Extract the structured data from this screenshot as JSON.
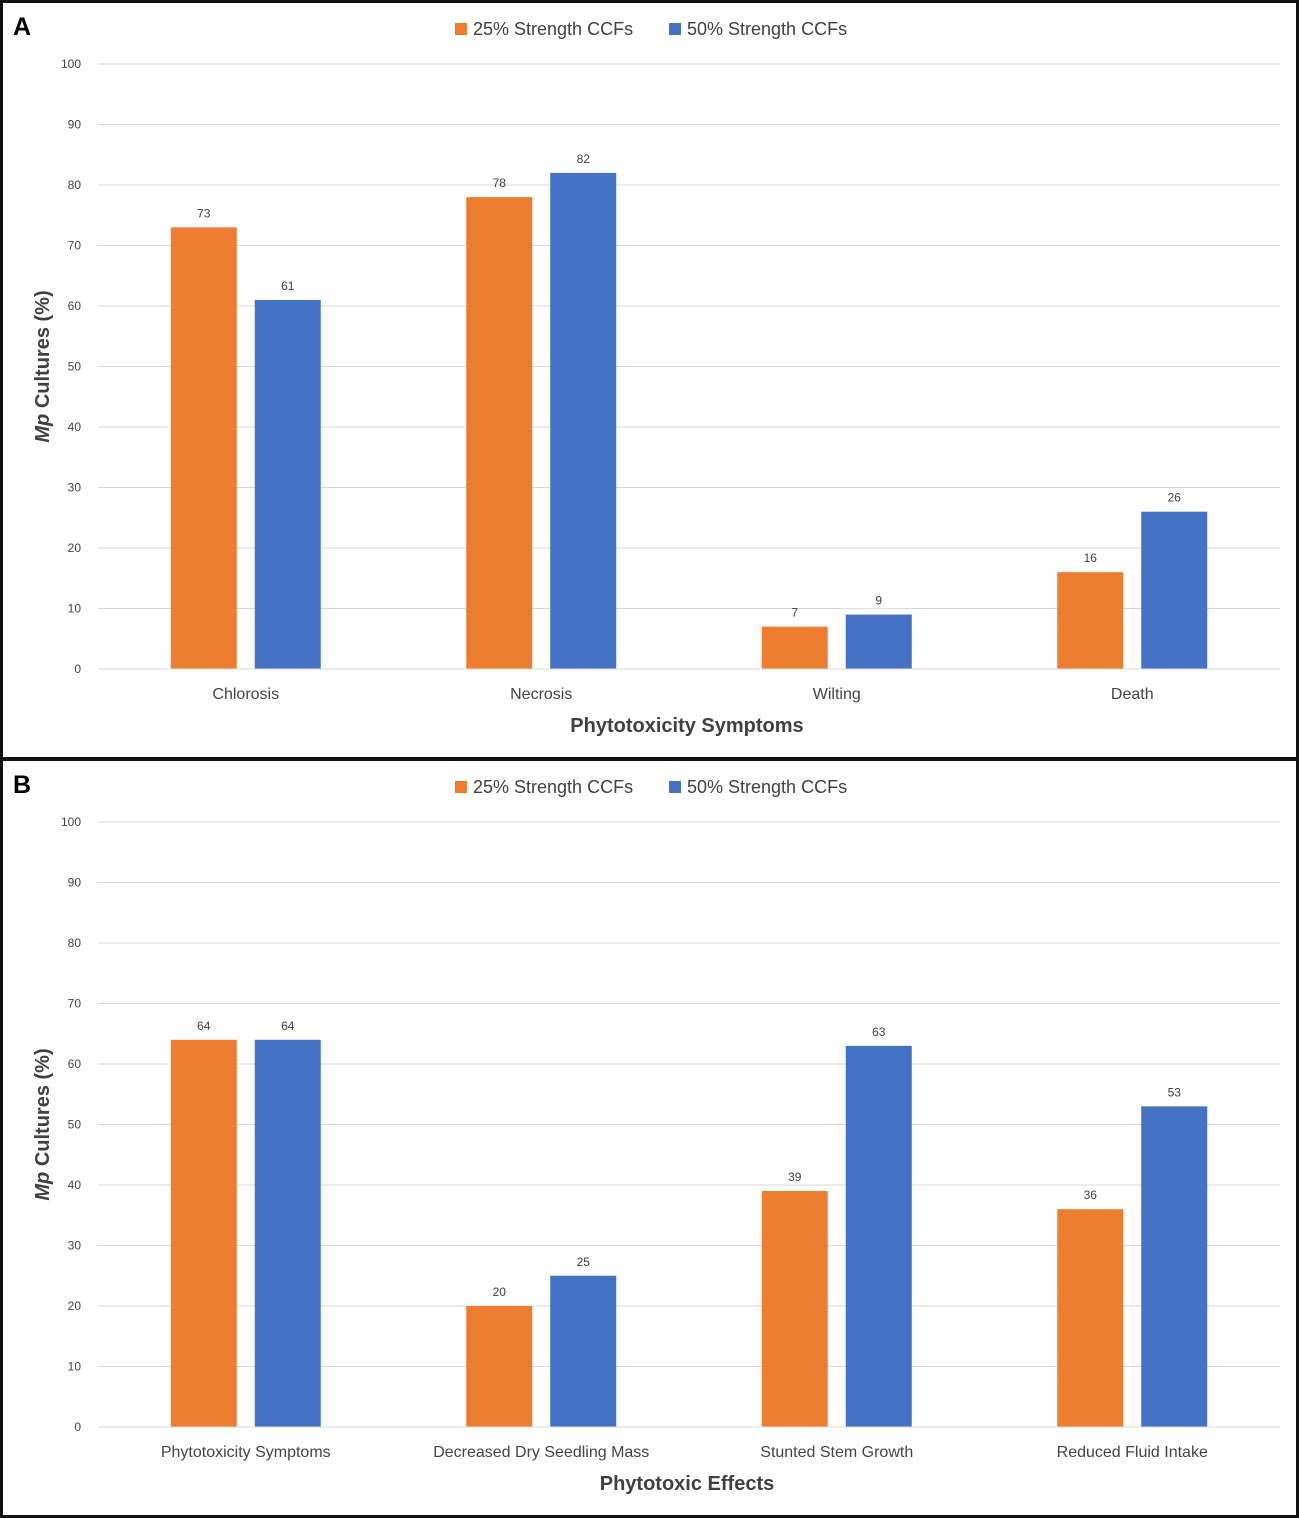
{
  "chart_data": [
    {
      "panel_label": "A",
      "type": "bar",
      "categories": [
        "Chlorosis",
        "Necrosis",
        "Wilting",
        "Death"
      ],
      "series": [
        {
          "name": "25% Strength CCFs",
          "color": "#ED7D31",
          "values": [
            73,
            78,
            7,
            16
          ]
        },
        {
          "name": "50% Strength CCFs",
          "color": "#4472C4",
          "values": [
            61,
            82,
            9,
            26
          ]
        }
      ],
      "title": "",
      "xlabel": "Phytotoxicity Symptoms",
      "ylabel_italic": "Mp",
      "ylabel_rest": " Cultures (%)",
      "ylim": [
        0,
        100
      ],
      "yticks": [
        0,
        10,
        20,
        30,
        40,
        50,
        60,
        70,
        80,
        90,
        100
      ],
      "grid": true,
      "legend": "top-center"
    },
    {
      "panel_label": "B",
      "type": "bar",
      "categories": [
        "Phytotoxicity Symptoms",
        "Decreased Dry Seedling Mass",
        "Stunted Stem Growth",
        "Reduced Fluid Intake"
      ],
      "series": [
        {
          "name": "25% Strength CCFs",
          "color": "#ED7D31",
          "values": [
            64,
            20,
            39,
            36
          ]
        },
        {
          "name": "50% Strength CCFs",
          "color": "#4472C4",
          "values": [
            64,
            25,
            63,
            53
          ]
        }
      ],
      "title": "",
      "xlabel": "Phytotoxic Effects",
      "ylabel_italic": "Mp",
      "ylabel_rest": " Cultures (%)",
      "ylim": [
        0,
        100
      ],
      "yticks": [
        0,
        10,
        20,
        30,
        40,
        50,
        60,
        70,
        80,
        90,
        100
      ],
      "grid": true,
      "legend": "top-center"
    }
  ]
}
